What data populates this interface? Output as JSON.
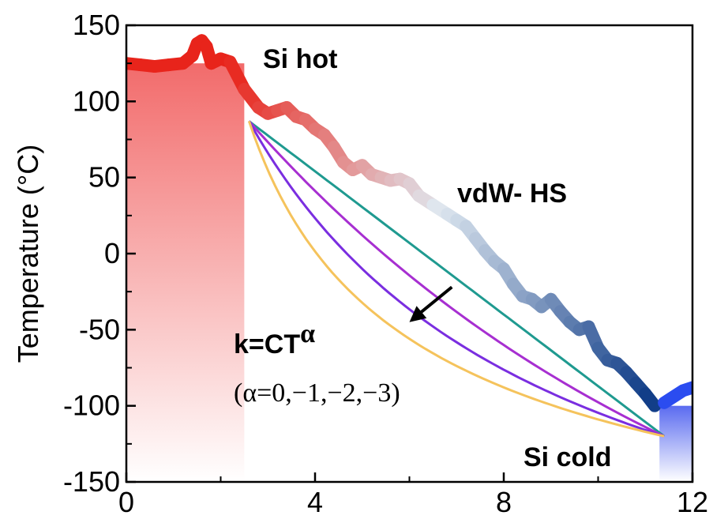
{
  "chart_data": {
    "type": "line",
    "title": "",
    "xlabel": "",
    "ylabel": "Temperature (°C)",
    "xlim": [
      0,
      12
    ],
    "ylim": [
      -150,
      150
    ],
    "x_ticks": [
      0,
      4,
      8,
      12
    ],
    "y_ticks": [
      150,
      100,
      50,
      0,
      -50,
      -100,
      -150
    ],
    "grid": false,
    "regions": [
      {
        "name": "Si hot",
        "x_range": [
          0,
          2.5
        ],
        "y_top": 125,
        "color_top": "#f26b6b",
        "color_bottom": "#ffffff"
      },
      {
        "name": "Si cold",
        "x_range": [
          11.3,
          12
        ],
        "y_top": -100,
        "color_top": "#5a6bf0",
        "color_bottom": "#ffffff"
      }
    ],
    "measured": {
      "name": "vdW- HS",
      "color_start": "#e8241b",
      "color_mid": "#dfe8f0",
      "color_end": "#0d3a86",
      "x": [
        0.0,
        0.3,
        0.6,
        0.9,
        1.2,
        1.4,
        1.5,
        1.6,
        1.7,
        1.8,
        2.0,
        2.2,
        2.5,
        2.8,
        3.0,
        3.2,
        3.4,
        3.6,
        3.8,
        4.0,
        4.2,
        4.4,
        4.6,
        4.8,
        5.0,
        5.2,
        5.4,
        5.6,
        5.8,
        6.0,
        6.2,
        6.5,
        6.8,
        7.0,
        7.2,
        7.4,
        7.6,
        7.8,
        8.0,
        8.2,
        8.4,
        8.6,
        8.8,
        9.0,
        9.2,
        9.4,
        9.6,
        9.8,
        10.0,
        10.2,
        10.4,
        10.6,
        10.8,
        11.0,
        11.2
      ],
      "y": [
        125,
        124,
        123,
        124,
        125,
        130,
        138,
        140,
        136,
        125,
        128,
        126,
        108,
        96,
        92,
        94,
        96,
        90,
        88,
        82,
        78,
        70,
        60,
        55,
        58,
        52,
        50,
        48,
        49,
        46,
        38,
        32,
        26,
        22,
        18,
        10,
        2,
        -5,
        -10,
        -20,
        -28,
        -30,
        -35,
        -30,
        -38,
        -45,
        -50,
        -48,
        -62,
        -70,
        -72,
        -78,
        -85,
        -92,
        -100
      ]
    },
    "right_segment": {
      "x": [
        11.4,
        11.6,
        11.8,
        12.0
      ],
      "y": [
        -98,
        -94,
        -90,
        -88
      ],
      "color": "#2b4cf0"
    },
    "model_curves": {
      "formula": "k=CT",
      "formula_exp": "α",
      "params_label": "(α=0,−1,−2,−3)",
      "x_start": 2.6,
      "x_end": 11.4,
      "y_start": 87,
      "y_end": -120,
      "series": [
        {
          "alpha": 0,
          "color": "#1f9a90"
        },
        {
          "alpha": -1,
          "color": "#a72fd1"
        },
        {
          "alpha": -2,
          "color": "#7a2ee0"
        },
        {
          "alpha": -3,
          "color": "#f5c35c"
        }
      ]
    },
    "annotations": {
      "si_hot": "Si hot",
      "si_cold": "Si cold",
      "vdw_hs": "vdW- HS"
    },
    "arrow": {
      "from": [
        6.9,
        -22
      ],
      "to": [
        6.0,
        -45
      ],
      "color": "#000000"
    }
  }
}
